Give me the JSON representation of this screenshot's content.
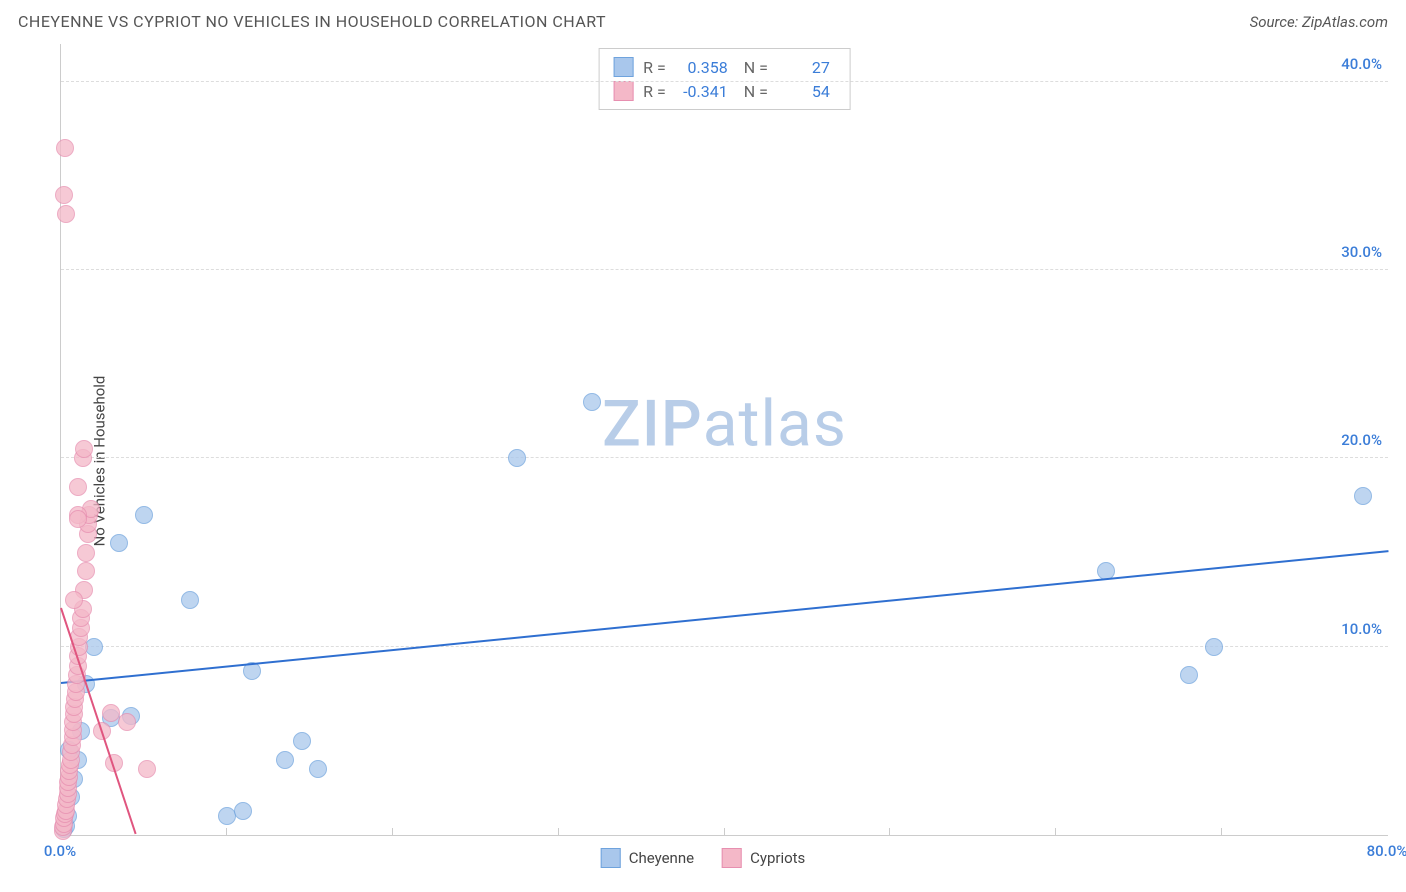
{
  "title": "CHEYENNE VS CYPRIOT NO VEHICLES IN HOUSEHOLD CORRELATION CHART",
  "source": "Source: ZipAtlas.com",
  "ylabel": "No Vehicles in Household",
  "watermark_a": "ZIP",
  "watermark_b": "atlas",
  "watermark_color": "#b8cde8",
  "chart": {
    "type": "scatter",
    "xlim": [
      0,
      80
    ],
    "ylim": [
      0,
      42
    ],
    "y_ticks": [
      10,
      20,
      30,
      40
    ],
    "y_tick_labels": [
      "10.0%",
      "20.0%",
      "30.0%",
      "40.0%"
    ],
    "x_ticks": [
      0,
      80
    ],
    "x_tick_labels": [
      "0.0%",
      "80.0%"
    ],
    "x_minor_ticks": [
      10,
      20,
      30,
      40,
      50,
      60,
      70
    ],
    "y_tick_color": "#3b7dd8",
    "x_tick_color": "#3b7dd8",
    "grid_color": "#dddddd",
    "axis_color": "#cccccc",
    "background": "#ffffff",
    "title_fontsize": 16,
    "title_color": "#555555",
    "label_fontsize": 15,
    "tick_fontsize": 15,
    "marker_radius": 9,
    "series": [
      {
        "name": "Cheyenne",
        "color_fill": "#a9c7ec",
        "color_stroke": "#6fa3dd",
        "opacity": 0.75,
        "R": "0.358",
        "N": "27",
        "trend": {
          "x0": 0,
          "y0": 8.0,
          "x1": 80,
          "y1": 15.0,
          "color": "#2f6fd0",
          "width": 2
        },
        "points": [
          [
            0.2,
            0.3
          ],
          [
            0.3,
            0.5
          ],
          [
            0.4,
            1.0
          ],
          [
            0.6,
            2.0
          ],
          [
            0.8,
            3.0
          ],
          [
            1.0,
            4.0
          ],
          [
            1.2,
            5.5
          ],
          [
            3.0,
            6.2
          ],
          [
            4.2,
            6.3
          ],
          [
            1.5,
            8.0
          ],
          [
            5.0,
            17.0
          ],
          [
            3.5,
            15.5
          ],
          [
            7.8,
            12.5
          ],
          [
            10.0,
            1.0
          ],
          [
            11.0,
            1.3
          ],
          [
            11.5,
            8.7
          ],
          [
            13.5,
            4.0
          ],
          [
            15.5,
            3.5
          ],
          [
            14.5,
            5.0
          ],
          [
            27.5,
            20.0
          ],
          [
            32.0,
            23.0
          ],
          [
            63.0,
            14.0
          ],
          [
            68.0,
            8.5
          ],
          [
            69.5,
            10.0
          ],
          [
            78.5,
            18.0
          ],
          [
            2.0,
            10.0
          ],
          [
            0.5,
            4.5
          ]
        ]
      },
      {
        "name": "Cypriots",
        "color_fill": "#f4b8c8",
        "color_stroke": "#e78fb0",
        "opacity": 0.75,
        "R": "-0.341",
        "N": "54",
        "trend": {
          "x0": 0,
          "y0": 12.0,
          "x1": 4.5,
          "y1": 0,
          "color": "#e0557f",
          "width": 2
        },
        "points": [
          [
            0.1,
            0.2
          ],
          [
            0.15,
            0.4
          ],
          [
            0.2,
            0.6
          ],
          [
            0.2,
            0.9
          ],
          [
            0.25,
            1.1
          ],
          [
            0.3,
            1.3
          ],
          [
            0.3,
            1.6
          ],
          [
            0.35,
            1.9
          ],
          [
            0.4,
            2.2
          ],
          [
            0.4,
            2.5
          ],
          [
            0.45,
            2.8
          ],
          [
            0.5,
            3.1
          ],
          [
            0.5,
            3.4
          ],
          [
            0.55,
            3.7
          ],
          [
            0.6,
            4.0
          ],
          [
            0.6,
            4.4
          ],
          [
            0.65,
            4.8
          ],
          [
            0.7,
            5.2
          ],
          [
            0.7,
            5.6
          ],
          [
            0.75,
            6.0
          ],
          [
            0.8,
            6.4
          ],
          [
            0.8,
            6.8
          ],
          [
            0.85,
            7.2
          ],
          [
            0.9,
            7.6
          ],
          [
            0.9,
            8.0
          ],
          [
            0.95,
            8.5
          ],
          [
            1.0,
            9.0
          ],
          [
            1.0,
            9.5
          ],
          [
            1.1,
            10.0
          ],
          [
            1.1,
            10.5
          ],
          [
            1.2,
            11.0
          ],
          [
            1.2,
            11.5
          ],
          [
            1.3,
            12.0
          ],
          [
            1.4,
            13.0
          ],
          [
            1.5,
            14.0
          ],
          [
            1.5,
            15.0
          ],
          [
            1.6,
            16.0
          ],
          [
            1.6,
            16.5
          ],
          [
            1.7,
            17.0
          ],
          [
            1.8,
            17.3
          ],
          [
            1.0,
            18.5
          ],
          [
            1.3,
            20.0
          ],
          [
            1.4,
            20.5
          ],
          [
            0.2,
            34.0
          ],
          [
            0.3,
            33.0
          ],
          [
            0.25,
            36.5
          ],
          [
            3.0,
            6.5
          ],
          [
            4.0,
            6.0
          ],
          [
            3.2,
            3.8
          ],
          [
            5.2,
            3.5
          ],
          [
            2.5,
            5.5
          ],
          [
            1.0,
            17.0
          ],
          [
            1.0,
            16.8
          ],
          [
            0.8,
            12.5
          ]
        ]
      }
    ],
    "legend_bottom": [
      "Cheyenne",
      "Cypriots"
    ],
    "legend_text_color": "#666666",
    "legend_val_color": "#3b7dd8"
  }
}
